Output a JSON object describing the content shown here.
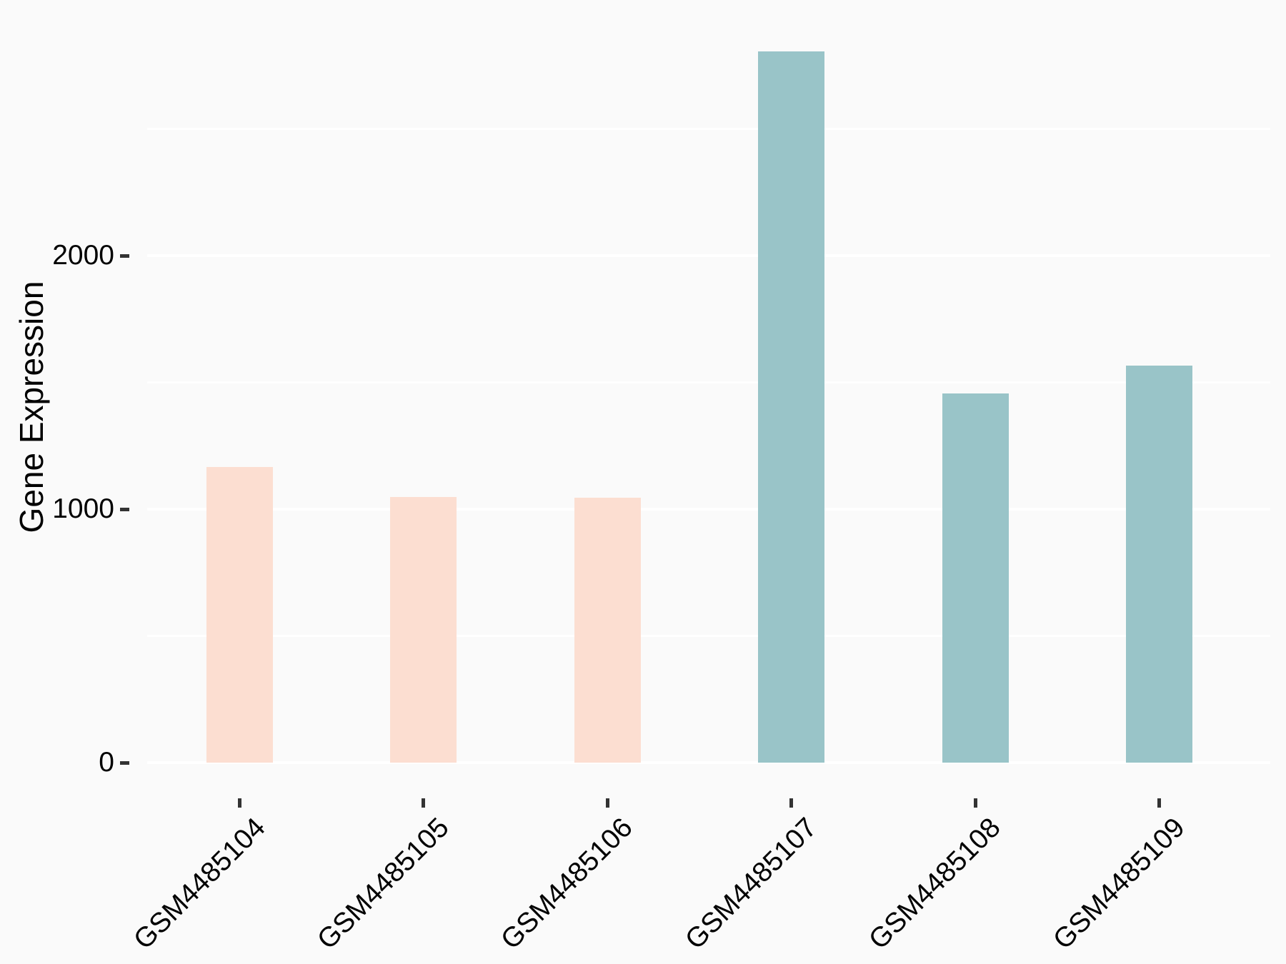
{
  "chart_data": {
    "type": "bar",
    "title": "",
    "xlabel": "",
    "ylabel": "Gene Expression",
    "categories": [
      "GSM4485104",
      "GSM4485105",
      "GSM4485106",
      "GSM4485107",
      "GSM4485108",
      "GSM4485109"
    ],
    "values": [
      1165,
      1048,
      1045,
      2805,
      1455,
      1565
    ],
    "bar_colors": [
      "#FCDED1",
      "#FCDED1",
      "#FCDED1",
      "#99C4C8",
      "#99C4C8",
      "#99C4C8"
    ],
    "ytick_values": [
      0,
      1000,
      2000
    ],
    "ytick_labels": [
      "0",
      "1000",
      "2000"
    ],
    "minor_gridline_values": [
      500,
      1500,
      2500
    ],
    "ylim": [
      0,
      2940
    ],
    "grid": true,
    "legend": "none",
    "colors": {
      "background": "#FAFAFA",
      "gridline": "#FFFFFF",
      "tick_mark": "#333333",
      "text": "#000000",
      "bar_group_1": "#FCDED1",
      "bar_group_2": "#99C4C8"
    }
  }
}
